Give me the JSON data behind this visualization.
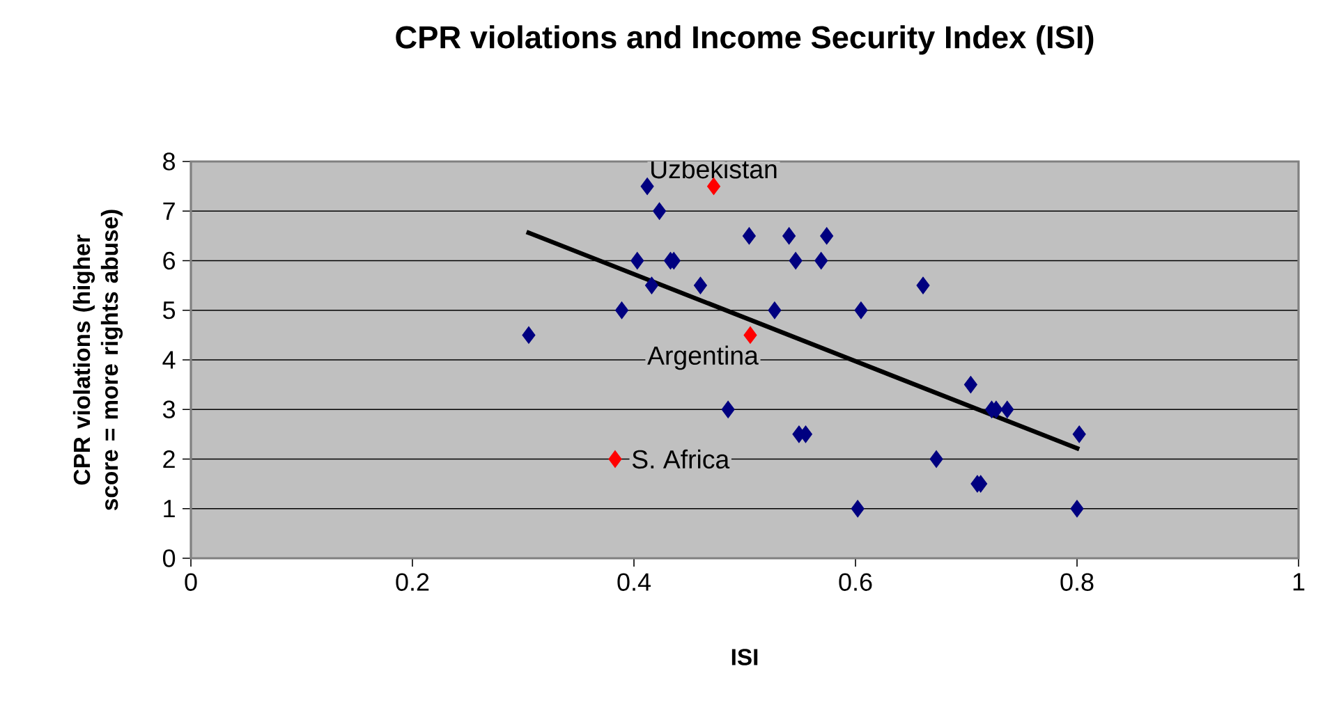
{
  "chart_data": {
    "type": "scatter",
    "title": "CPR violations and Income Security Index (ISI)",
    "xlabel": "ISI",
    "ylabel": "CPR violations (higher score = more rights abuse)",
    "xlim": [
      0,
      1
    ],
    "ylim": [
      0,
      8
    ],
    "xticks": [
      0,
      0.2,
      0.4,
      0.6,
      0.8,
      1
    ],
    "yticks": [
      0,
      1,
      2,
      3,
      4,
      5,
      6,
      7,
      8
    ],
    "grid": "y",
    "marker": "diamond",
    "series": [
      {
        "color": "#000080",
        "x": [
          0.305,
          0.412,
          0.423,
          0.403,
          0.433,
          0.436,
          0.416,
          0.389,
          0.46,
          0.485,
          0.504,
          0.54,
          0.574,
          0.546,
          0.569,
          0.527,
          0.605,
          0.661,
          0.704,
          0.723,
          0.727,
          0.737,
          0.549,
          0.555,
          0.802,
          0.673,
          0.71,
          0.713,
          0.602,
          0.8
        ],
        "values": [
          4.5,
          7.5,
          7,
          6,
          6,
          6,
          5.5,
          5,
          5.5,
          3,
          6.5,
          6.5,
          6.5,
          6,
          6,
          5,
          5,
          5.5,
          3.5,
          3,
          3,
          3,
          2.5,
          2.5,
          2.5,
          2,
          1.5,
          1.5,
          1,
          1
        ]
      },
      {
        "color": "#ff0000",
        "x": [
          0.472,
          0.505,
          0.383
        ],
        "values": [
          7.5,
          4.5,
          2
        ]
      },
      {
        "type": "line",
        "color": "#000000",
        "marker": "none",
        "x": [
          0.303,
          0.802
        ],
        "values": [
          6.58,
          2.2
        ]
      }
    ],
    "annotations": [
      {
        "text": "Uzbekistan",
        "x": 0.472,
        "y": 7.5
      },
      {
        "text": "Argentina",
        "x": 0.505,
        "y": 4.5
      },
      {
        "text": "S. Africa",
        "x": 0.383,
        "y": 2
      }
    ]
  }
}
